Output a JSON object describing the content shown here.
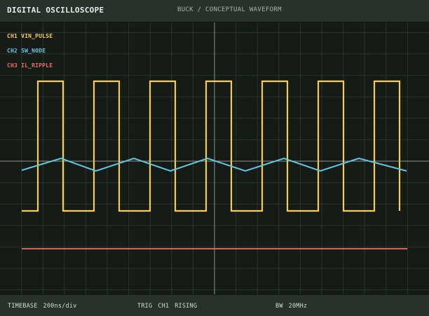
{
  "header": {
    "title": "DIGITAL OSCILLOSCOPE",
    "subtitle": "BUCK / CONCEPTUAL WAVEFORM"
  },
  "channels": [
    {
      "id": "CH1",
      "label": "CH1 VIN_PULSE",
      "color": "#f2cf52"
    },
    {
      "id": "CH2",
      "label": "CH2 SW_NODE",
      "color": "#63c7e0"
    },
    {
      "id": "CH3",
      "label": "CH3 IL_RIPPLE",
      "color": "#e57266"
    }
  ],
  "status": {
    "timebase_label": "TIMEBASE",
    "timebase_value": "200ns/div",
    "trigger_label": "TRIG",
    "trigger_channel": "CH1",
    "trigger_edge": "RISING",
    "bandwidth_label": "BW",
    "bandwidth_value": "20MHz"
  },
  "grid": {
    "divisions_x": 20,
    "divisions_y": 13,
    "color": "#2a332e",
    "axis_color": "#8a938d"
  },
  "waveforms": {
    "ch1_pulses": 7,
    "ch1_duty": 0.45,
    "ch2_peaks": 5,
    "ch3_level": "flat"
  },
  "colors": {
    "background": "#161b18",
    "panel": "#2a312d"
  }
}
